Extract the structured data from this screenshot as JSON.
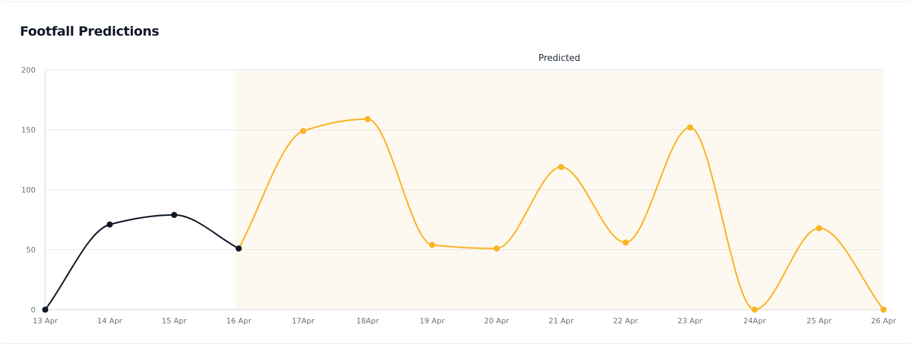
{
  "title": "Footfall Predictions",
  "chart_data": {
    "type": "line",
    "title": "Footfall Predictions",
    "categories": [
      "13 Apr",
      "14 Apr",
      "15 Apr",
      "16 Apr",
      "17Apr",
      "18Apr",
      "19 Apr",
      "20 Apr",
      "21 Apr",
      "22 Apr",
      "23 Apr",
      "24Apr",
      "25 Apr",
      "26 Apr"
    ],
    "ylim": [
      0,
      200
    ],
    "yticks": [
      0,
      50,
      100,
      150,
      200
    ],
    "grid": true,
    "series": [
      {
        "key": "actual",
        "color": "#111827",
        "values": [
          0,
          71,
          79,
          51,
          null,
          null,
          null,
          null,
          null,
          null,
          null,
          null,
          null,
          null
        ]
      },
      {
        "key": "predicted",
        "color": "#fbb326",
        "values": [
          null,
          null,
          null,
          51,
          149,
          159,
          54,
          51,
          119,
          56,
          152,
          0,
          68,
          0
        ]
      }
    ],
    "annotations": [
      {
        "type": "region",
        "label": "Predicted",
        "from": "16 Apr",
        "to": "26 Apr",
        "color": "#fdf9f0"
      }
    ]
  }
}
